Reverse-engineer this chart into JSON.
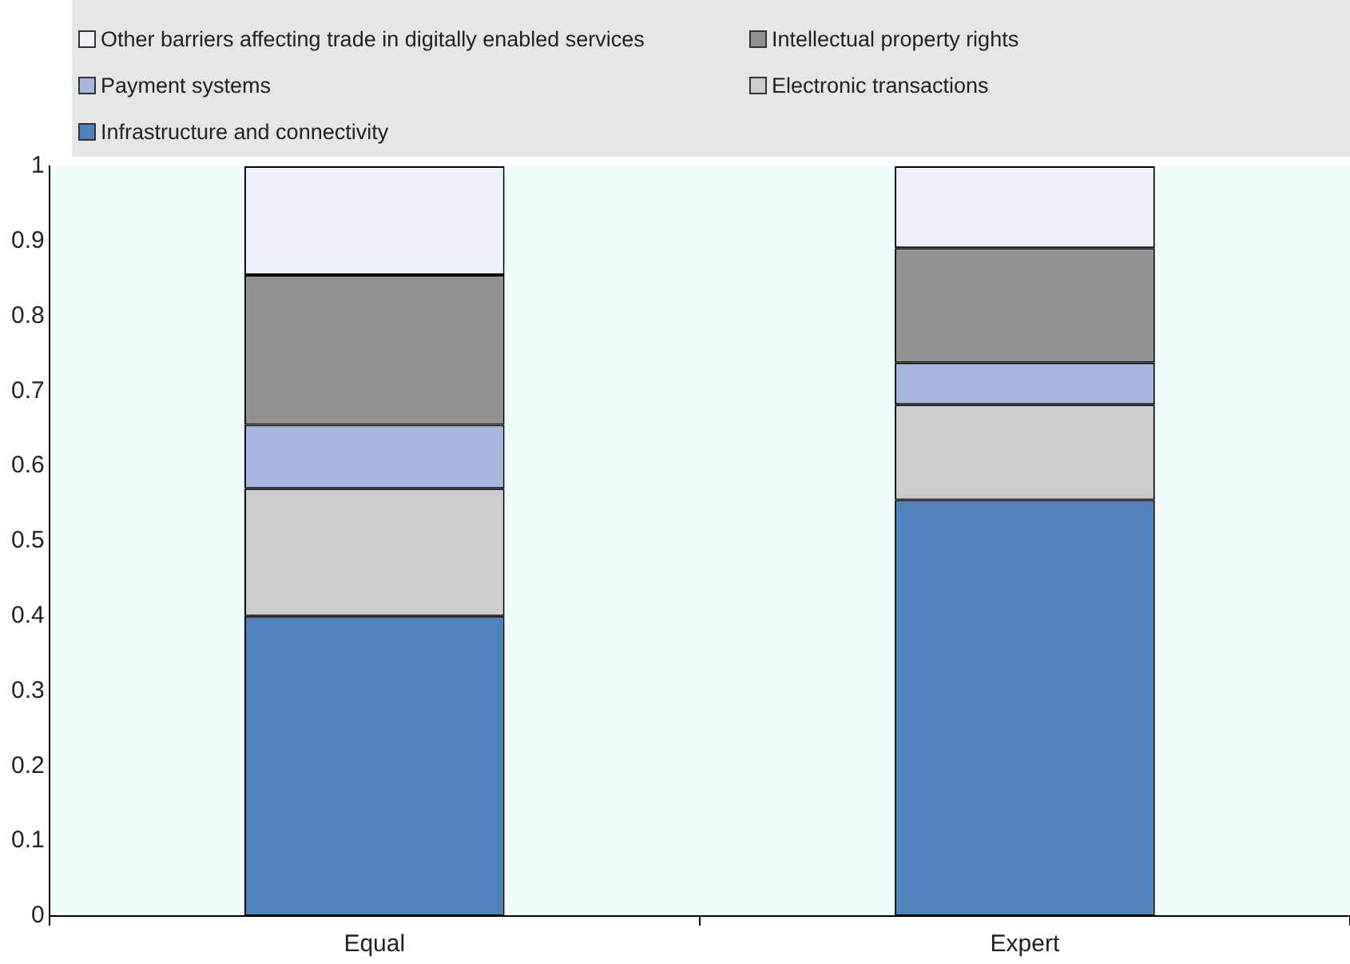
{
  "chart_data": {
    "type": "bar",
    "stacked": true,
    "categories": [
      "Equal",
      "Expert"
    ],
    "series": [
      {
        "name": "Infrastructure and connectivity",
        "color": "#4f81bd",
        "values": [
          0.4,
          0.555
        ]
      },
      {
        "name": "Electronic transactions",
        "color": "#cccccc",
        "values": [
          0.17,
          0.127
        ]
      },
      {
        "name": "Payment systems",
        "color": "#a6b7e0",
        "values": [
          0.085,
          0.056
        ]
      },
      {
        "name": "Intellectual property rights",
        "color": "#929292",
        "values": [
          0.2,
          0.153
        ]
      },
      {
        "name": "Other barriers affecting trade in digitally enabled services",
        "color": "#eef0fa",
        "values": [
          0.145,
          0.109
        ]
      }
    ],
    "ylim": [
      0,
      1
    ],
    "yticks": [
      0,
      0.1,
      0.2,
      0.3,
      0.4,
      0.5,
      0.6,
      0.7,
      0.8,
      0.9,
      1
    ],
    "grid": false,
    "legend": "top"
  }
}
